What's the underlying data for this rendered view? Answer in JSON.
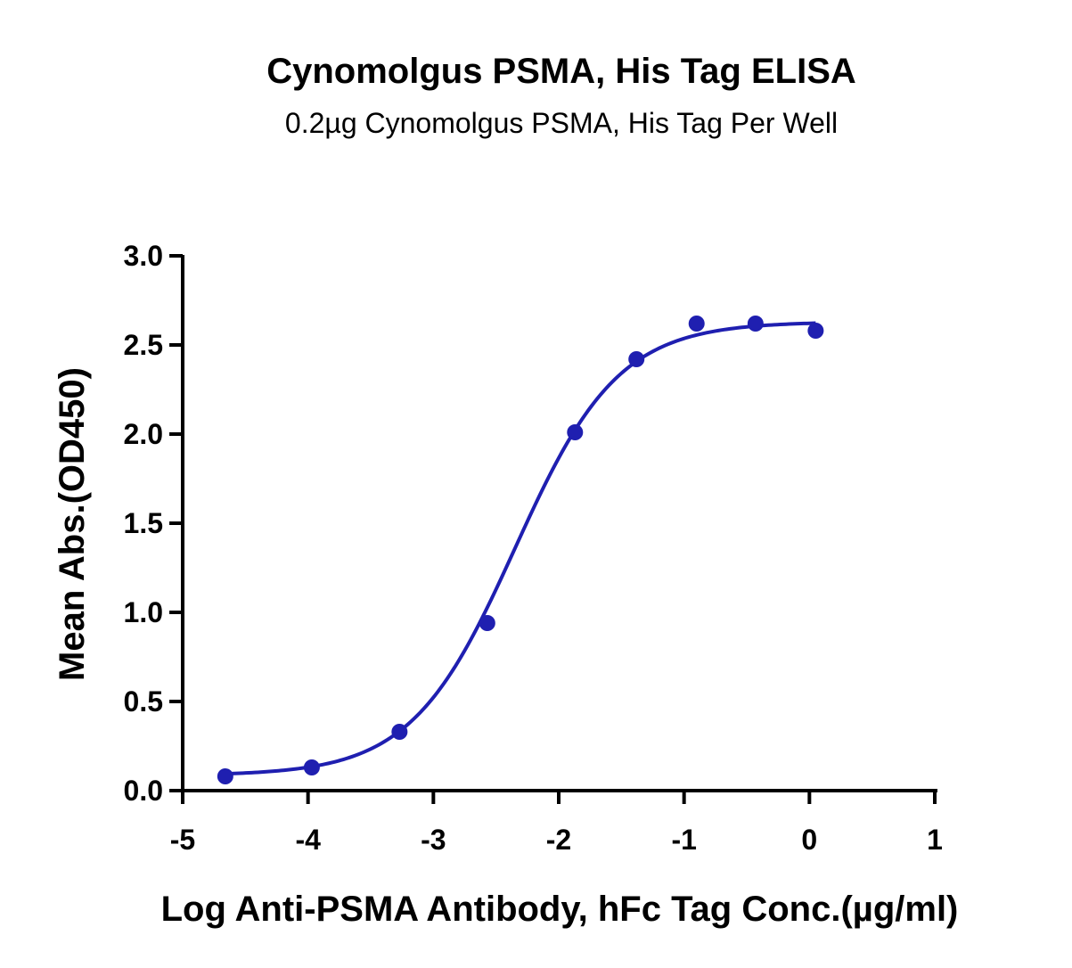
{
  "chart_data": {
    "type": "scatter",
    "title": "Cynomolgus PSMA, His Tag ELISA",
    "subtitle": "0.2µg Cynomolgus PSMA, His Tag Per Well",
    "xlabel": "Log Anti-PSMA Antibody, hFc Tag Conc.(µg/ml)",
    "ylabel": "Mean Abs.(OD450)",
    "xlim": [
      -5,
      1
    ],
    "ylim": [
      0,
      3
    ],
    "x_ticks": [
      -5,
      -4,
      -3,
      -2,
      -1,
      0,
      1
    ],
    "x_tick_labels": [
      "-5",
      "-4",
      "-3",
      "-2",
      "-1",
      "0",
      "1"
    ],
    "y_ticks": [
      0,
      0.5,
      1,
      1.5,
      2,
      2.5,
      3
    ],
    "y_tick_labels": [
      "0.0",
      "0.5",
      "1.0",
      "1.5",
      "2.0",
      "2.5",
      "3.0"
    ],
    "grid": false,
    "legend": "none",
    "color": "#1f1fb0",
    "series": [
      {
        "x": [
          -4.66,
          -3.97,
          -3.27,
          -2.57,
          -1.87,
          -1.38,
          -0.9,
          -0.43,
          0.05
        ],
        "y": [
          0.08,
          0.13,
          0.33,
          0.94,
          2.01,
          2.42,
          2.62,
          2.62,
          2.58
        ],
        "fit": {
          "model": "4PL",
          "bottom": 0.085,
          "top": 2.63,
          "logEC50": -2.35,
          "hill": 1.05,
          "x_range": [
            -4.66,
            0.05
          ]
        }
      }
    ]
  }
}
